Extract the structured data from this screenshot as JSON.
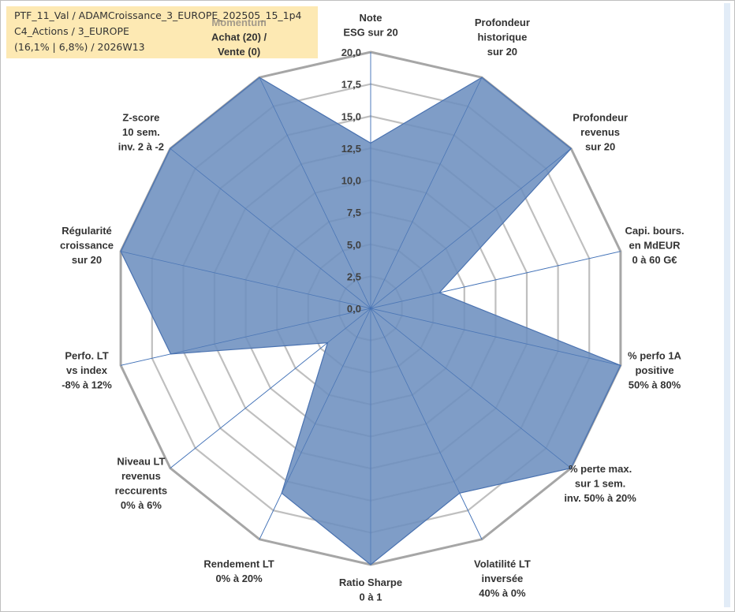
{
  "header": {
    "line1": "PTF_11_Val / ADAMCroissance_3_EUROPE_202505_15_1p4",
    "line2": "C4_Actions / 3_EUROPE",
    "line3": "(16,1% | 6,8%) / 2026W13"
  },
  "chart_data": {
    "type": "radar",
    "title": "",
    "range": [
      0,
      20
    ],
    "tick_values": [
      0,
      2.5,
      5,
      7.5,
      10,
      12.5,
      15,
      17.5,
      20
    ],
    "tick_labels": [
      "0,0",
      "2,5",
      "5,0",
      "7,5",
      "10,0",
      "12,5",
      "15,0",
      "17,5",
      "20,0"
    ],
    "grid": true,
    "colors": {
      "fill": "#6d8fbf",
      "stroke": "#4a72b0",
      "grid": "#bfbfbf",
      "spoke": "#4a7bc0",
      "outer_ring": "#a6a6a6"
    },
    "axes": [
      {
        "label_lines": [
          "Note",
          "ESG sur 20"
        ]
      },
      {
        "label_lines": [
          "Profondeur",
          "historique",
          "sur 20"
        ]
      },
      {
        "label_lines": [
          "Profondeur",
          "revenus",
          "sur 20"
        ]
      },
      {
        "label_lines": [
          "Capi. bours.",
          "en MdEUR",
          "0 à 60 G€"
        ]
      },
      {
        "label_lines": [
          "% perfo 1A",
          "positive",
          "50% à 80%"
        ]
      },
      {
        "label_lines": [
          "% perte max.",
          "sur 1 sem.",
          "inv. 50% à 20%"
        ]
      },
      {
        "label_lines": [
          "Volatilité LT",
          "inversée",
          "40% à 0%"
        ]
      },
      {
        "label_lines": [
          "Ratio Sharpe",
          "0 à 1"
        ]
      },
      {
        "label_lines": [
          "Rendement LT",
          "0% à 20%"
        ]
      },
      {
        "label_lines": [
          "Niveau LT",
          "revenus",
          "reccurents",
          "0% à 6%"
        ]
      },
      {
        "label_lines": [
          "Perfo. LT",
          "vs index",
          "-8% à 12%"
        ]
      },
      {
        "label_lines": [
          "Régularité",
          "croissance",
          "sur 20"
        ]
      },
      {
        "label_lines": [
          "Z-score",
          "10 sem.",
          "inv. 2 à -2"
        ]
      },
      {
        "label_lines": [
          "Momentum",
          "Achat (20) /",
          "Vente (0)"
        ]
      }
    ],
    "series": [
      {
        "values": [
          12.9,
          20,
          20,
          5.5,
          20,
          20,
          16,
          20,
          16,
          4.3,
          16,
          20,
          20,
          20
        ]
      }
    ]
  }
}
